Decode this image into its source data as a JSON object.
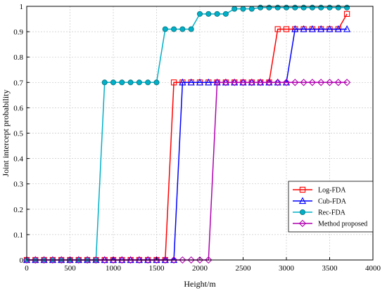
{
  "chart_data": {
    "type": "line",
    "title": "",
    "xlabel": "Height/m",
    "ylabel": "Joint intercept probability",
    "xlim": [
      0,
      4000
    ],
    "ylim": [
      0,
      1
    ],
    "xticks": [
      "0",
      "500",
      "1000",
      "1500",
      "2000",
      "2500",
      "3000",
      "3500",
      "4000"
    ],
    "yticks": [
      "0",
      "0.1",
      "0.2",
      "0.3",
      "0.4",
      "0.5",
      "0.6",
      "0.7",
      "0.8",
      "0.9",
      "1"
    ],
    "grid": true,
    "legend_position": "lower-right",
    "x": [
      0,
      100,
      200,
      300,
      400,
      500,
      600,
      700,
      800,
      900,
      1000,
      1100,
      1200,
      1300,
      1400,
      1500,
      1600,
      1700,
      1800,
      1900,
      2000,
      2100,
      2200,
      2300,
      2400,
      2500,
      2600,
      2700,
      2800,
      2900,
      3000,
      3100,
      3200,
      3300,
      3400,
      3500,
      3600,
      3700
    ],
    "series": [
      {
        "name": "Log-FDA",
        "color": "#ff0000",
        "marker": "square",
        "values": [
          0,
          0,
          0,
          0,
          0,
          0,
          0,
          0,
          0,
          0,
          0,
          0,
          0,
          0,
          0,
          0,
          0,
          0.7,
          0.7,
          0.7,
          0.7,
          0.7,
          0.7,
          0.7,
          0.7,
          0.7,
          0.7,
          0.7,
          0.7,
          0.91,
          0.91,
          0.91,
          0.91,
          0.91,
          0.91,
          0.91,
          0.91,
          0.97
        ]
      },
      {
        "name": "Cub-FDA",
        "color": "#0000ff",
        "marker": "triangle",
        "values": [
          0,
          0,
          0,
          0,
          0,
          0,
          0,
          0,
          0,
          0,
          0,
          0,
          0,
          0,
          0,
          0,
          0,
          0,
          0.7,
          0.7,
          0.7,
          0.7,
          0.7,
          0.7,
          0.7,
          0.7,
          0.7,
          0.7,
          0.7,
          0.7,
          0.7,
          0.91,
          0.91,
          0.91,
          0.91,
          0.91,
          0.91,
          0.91
        ]
      },
      {
        "name": "Rec-FDA",
        "color": "#00b0c8",
        "marker": "circle",
        "values": [
          0,
          0,
          0,
          0,
          0,
          0,
          0,
          0,
          0,
          0.7,
          0.7,
          0.7,
          0.7,
          0.7,
          0.7,
          0.7,
          0.91,
          0.91,
          0.91,
          0.91,
          0.97,
          0.97,
          0.97,
          0.97,
          0.99,
          0.99,
          0.99,
          0.995,
          0.995,
          0.995,
          0.995,
          0.995,
          0.995,
          0.995,
          0.995,
          0.995,
          0.995,
          0.995
        ]
      },
      {
        "name": "Method proposed",
        "color": "#b000b0",
        "marker": "diamond",
        "values": [
          0,
          0,
          0,
          0,
          0,
          0,
          0,
          0,
          0,
          0,
          0,
          0,
          0,
          0,
          0,
          0,
          0,
          0,
          0,
          0,
          0,
          0,
          0.7,
          0.7,
          0.7,
          0.7,
          0.7,
          0.7,
          0.7,
          0.7,
          0.7,
          0.7,
          0.7,
          0.7,
          0.7,
          0.7,
          0.7,
          0.7
        ]
      }
    ]
  }
}
